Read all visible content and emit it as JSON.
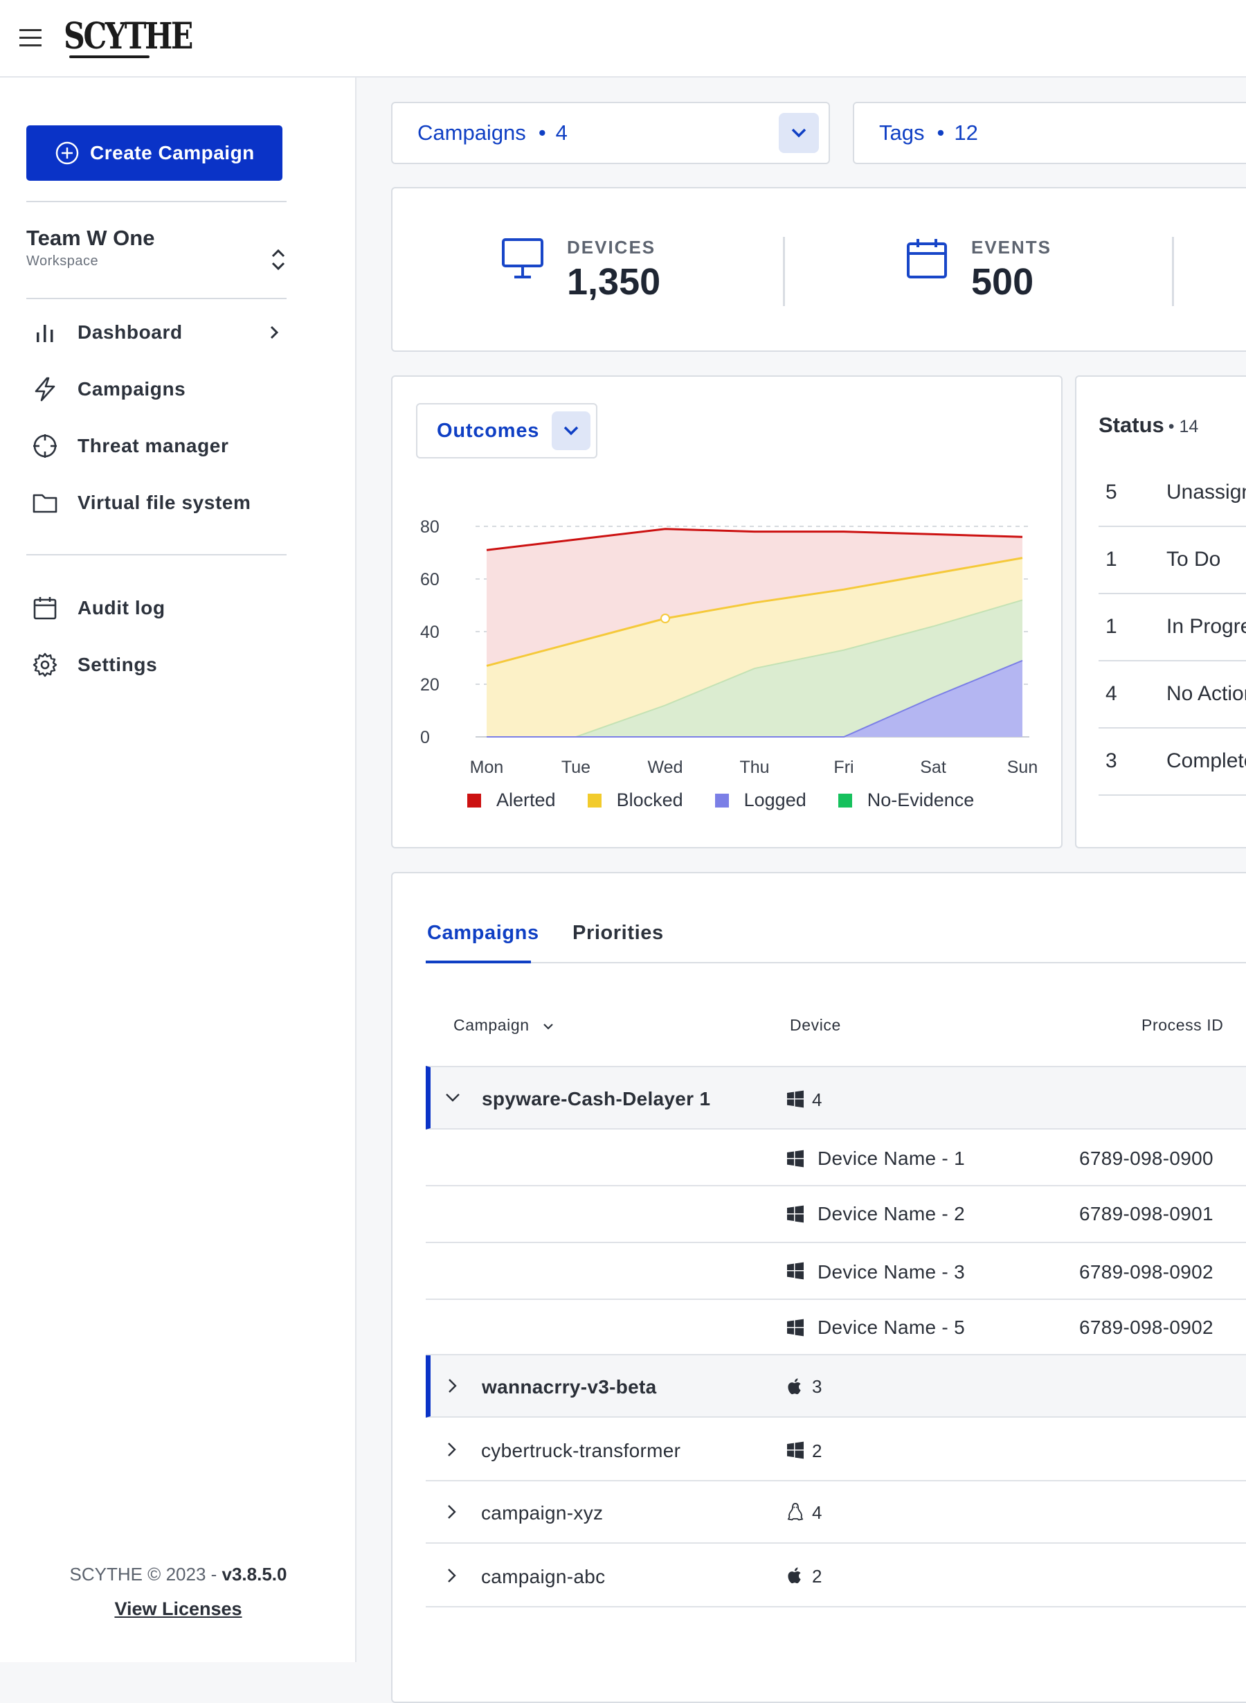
{
  "header": {
    "logo_text": "SCYTHE"
  },
  "sidebar": {
    "create_label": "Create Campaign",
    "workspace_name": "Team W One",
    "workspace_sub": "Workspace",
    "nav": [
      {
        "label": "Dashboard",
        "icon": "bar-chart-icon"
      },
      {
        "label": "Campaigns",
        "icon": "lightning-icon"
      },
      {
        "label": "Threat manager",
        "icon": "crosshair-icon"
      },
      {
        "label": "Virtual file system",
        "icon": "folder-icon"
      },
      {
        "label": "Audit log",
        "icon": "calendar-icon"
      },
      {
        "label": "Settings",
        "icon": "gear-icon"
      }
    ],
    "footer_prefix": "SCYTHE © 2023 - ",
    "footer_version": "v3.8.5.0",
    "footer_link": "View Licenses"
  },
  "filters": [
    {
      "label": "Campaigns",
      "count": "4"
    },
    {
      "label": "Tags",
      "count": "12"
    }
  ],
  "stats": [
    {
      "label": "DEVICES",
      "value": "1,350",
      "icon": "monitor-icon"
    },
    {
      "label": "EVENTS",
      "value": "500",
      "icon": "calendar-icon"
    }
  ],
  "outcomes": {
    "select_label": "Outcomes"
  },
  "chart_data": {
    "type": "area",
    "categories": [
      "Mon",
      "Tue",
      "Wed",
      "Thu",
      "Fri",
      "Sat",
      "Sun"
    ],
    "ylim": [
      0,
      80
    ],
    "yticks": [
      0,
      20,
      40,
      60,
      80
    ],
    "series": [
      {
        "name": "Alerted",
        "color": "#cc1111",
        "values": [
          71,
          75,
          79,
          78,
          78,
          77,
          76
        ]
      },
      {
        "name": "Blocked",
        "color": "#f2cb2c",
        "values": [
          27,
          36,
          45,
          51,
          56,
          62,
          68
        ]
      },
      {
        "name": "No-Evidence",
        "color": "#16c15d",
        "values": [
          0,
          0,
          12,
          26,
          33,
          42,
          52
        ]
      },
      {
        "name": "Logged",
        "color": "#7b7fe6",
        "values": [
          0,
          0,
          0,
          0,
          0,
          15,
          29
        ]
      }
    ],
    "legend_order": [
      "Alerted",
      "Blocked",
      "Logged",
      "No-Evidence"
    ],
    "grid": "dashed-horizontal",
    "legend_position": "bottom"
  },
  "status": {
    "title": "Status",
    "count": "14",
    "rows": [
      {
        "num": "5",
        "name": "Unassigned"
      },
      {
        "num": "1",
        "name": "To Do"
      },
      {
        "num": "1",
        "name": "In Progress"
      },
      {
        "num": "4",
        "name": "No Action"
      },
      {
        "num": "3",
        "name": "Complete"
      }
    ]
  },
  "table": {
    "tabs": [
      "Campaigns",
      "Priorities"
    ],
    "columns": {
      "campaign": "Campaign",
      "device": "Device",
      "process_id": "Process ID"
    },
    "expanded": {
      "name": "spyware-Cash-Delayer 1",
      "os": "windows-icon",
      "count": "4",
      "devices": [
        {
          "name": "Device Name - 1",
          "pid": "6789-098-0900"
        },
        {
          "name": "Device Name - 2",
          "pid": "6789-098-0901"
        },
        {
          "name": "Device Name - 3",
          "pid": "6789-098-0902"
        },
        {
          "name": "Device Name - 5",
          "pid": "6789-098-0902"
        }
      ]
    },
    "rows": [
      {
        "name": "wannacrry-v3-beta",
        "os": "apple-icon",
        "count": "3"
      },
      {
        "name": "cybertruck-transformer",
        "os": "windows-icon",
        "count": "2"
      },
      {
        "name": "campaign-xyz",
        "os": "linux-icon",
        "count": "4"
      },
      {
        "name": "campaign-abc",
        "os": "apple-icon",
        "count": "2"
      }
    ]
  },
  "colors": {
    "primary": "#0a33c7",
    "link": "#0f3fc4",
    "border": "#d9dde3"
  }
}
